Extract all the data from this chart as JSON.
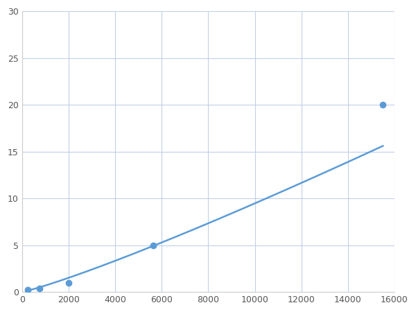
{
  "x_points": [
    250,
    750,
    2000,
    5625,
    15500
  ],
  "y_points": [
    0.2,
    0.4,
    1.0,
    5.0,
    20.0
  ],
  "line_color": "#5b9bd5",
  "marker_color": "#5b9bd5",
  "marker_size": 6,
  "line_width": 1.8,
  "xlim": [
    0,
    16000
  ],
  "ylim": [
    0,
    30
  ],
  "xticks": [
    0,
    2000,
    4000,
    6000,
    8000,
    10000,
    12000,
    14000,
    16000
  ],
  "yticks": [
    0,
    5,
    10,
    15,
    20,
    25,
    30
  ],
  "grid_color": "#c0d0e8",
  "background_color": "#ffffff",
  "figure_width": 6.0,
  "figure_height": 4.5,
  "dpi": 100
}
